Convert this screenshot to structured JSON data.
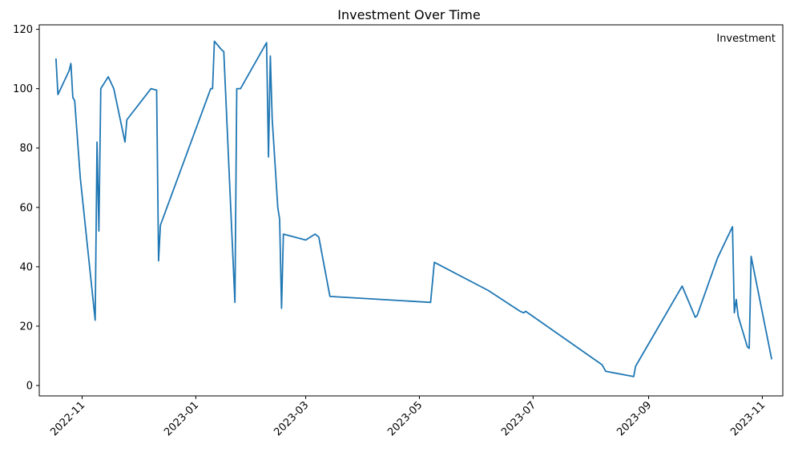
{
  "chart_data": {
    "type": "line",
    "title": "Investment Over Time",
    "xlabel": "",
    "ylabel": "",
    "grid": false,
    "legend_position": "top-right",
    "ylim": [
      -3.5,
      121.5
    ],
    "xlim": [
      "2022-10-09",
      "2023-11-12"
    ],
    "x_ticks": [
      "2022-11-01",
      "2023-01-01",
      "2023-03-01",
      "2023-05-01",
      "2023-07-01",
      "2023-09-01",
      "2023-11-01"
    ],
    "x_tick_labels": [
      "2022-11",
      "2023-01",
      "2023-03",
      "2023-05",
      "2023-07",
      "2023-09",
      "2023-11"
    ],
    "y_ticks": [
      0,
      20,
      40,
      60,
      80,
      100,
      120
    ],
    "y_tick_labels": [
      "0",
      "20",
      "40",
      "60",
      "80",
      "100",
      "120"
    ],
    "series": [
      {
        "name": "Investment",
        "color": "#1f77b4",
        "x": [
          "2022-10-18",
          "2022-10-19",
          "2022-10-25",
          "2022-10-26",
          "2022-10-27",
          "2022-10-28",
          "2022-10-31",
          "2022-11-08",
          "2022-11-09",
          "2022-11-10",
          "2022-11-11",
          "2022-11-15",
          "2022-11-18",
          "2022-11-24",
          "2022-11-25",
          "2022-12-08",
          "2022-12-11",
          "2022-12-12",
          "2022-12-13",
          "2023-01-09",
          "2023-01-10",
          "2023-01-11",
          "2023-01-15",
          "2023-01-16",
          "2023-01-22",
          "2023-01-23",
          "2023-01-25",
          "2023-02-08",
          "2023-02-09",
          "2023-02-10",
          "2023-02-11",
          "2023-02-14",
          "2023-02-15",
          "2023-02-16",
          "2023-02-17",
          "2023-03-01",
          "2023-03-06",
          "2023-03-08",
          "2023-03-14",
          "2023-05-07",
          "2023-05-09",
          "2023-06-07",
          "2023-06-24",
          "2023-06-26",
          "2023-06-27",
          "2023-08-07",
          "2023-08-09",
          "2023-08-24",
          "2023-08-25",
          "2023-09-19",
          "2023-09-26",
          "2023-09-27",
          "2023-10-08",
          "2023-10-16",
          "2023-10-17",
          "2023-10-18",
          "2023-10-19",
          "2023-10-24",
          "2023-10-25",
          "2023-10-26",
          "2023-11-06"
        ],
        "y": [
          110,
          98,
          106,
          108.5,
          97,
          96,
          70,
          22,
          82,
          52,
          100,
          104,
          100,
          82,
          89.5,
          100,
          99.5,
          42,
          54,
          100,
          100,
          116,
          113,
          112.5,
          28,
          100,
          100,
          115.5,
          77,
          111,
          90,
          60,
          56,
          26,
          51,
          49,
          51,
          50,
          30,
          28,
          41.5,
          32,
          25,
          24.5,
          25,
          7,
          4.8,
          3,
          6.5,
          33.5,
          23,
          23.5,
          43,
          53.5,
          24.5,
          29,
          23.5,
          13,
          12.5,
          43.5,
          9
        ]
      }
    ]
  }
}
